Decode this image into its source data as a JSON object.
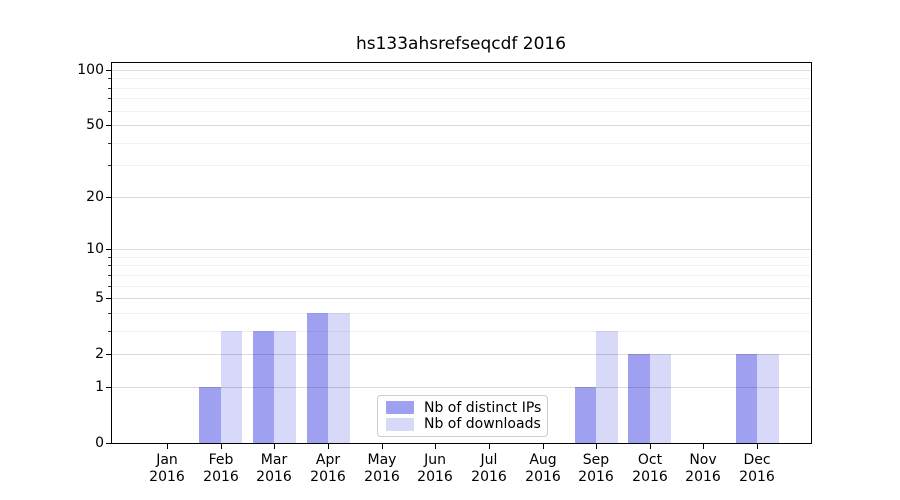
{
  "chart_data": {
    "type": "bar",
    "title": "hs133ahsrefseqcdf 2016",
    "year_label": "2016",
    "categories": [
      "Jan",
      "Feb",
      "Mar",
      "Apr",
      "May",
      "Jun",
      "Jul",
      "Aug",
      "Sep",
      "Oct",
      "Nov",
      "Dec"
    ],
    "series": [
      {
        "name": "Nb of distinct IPs",
        "color": "#a0a0f0",
        "values": [
          0,
          1,
          3,
          4,
          0,
          0,
          0,
          0,
          1,
          2,
          0,
          2
        ]
      },
      {
        "name": "Nb of downloads",
        "color": "#d8d8f8",
        "values": [
          0,
          3,
          3,
          4,
          0,
          0,
          0,
          0,
          3,
          2,
          0,
          2
        ]
      }
    ],
    "y_axis": {
      "scale": "log1p",
      "ticks": [
        0,
        1,
        2,
        5,
        10,
        20,
        50,
        100
      ],
      "minor_ticks": [
        3,
        4,
        6,
        7,
        8,
        9,
        30,
        40,
        60,
        70,
        80,
        90
      ],
      "range": [
        0,
        110
      ]
    },
    "x_axis": {
      "label_format": "month over year"
    },
    "grid": true,
    "legend": {
      "position": "bottom-center"
    }
  }
}
